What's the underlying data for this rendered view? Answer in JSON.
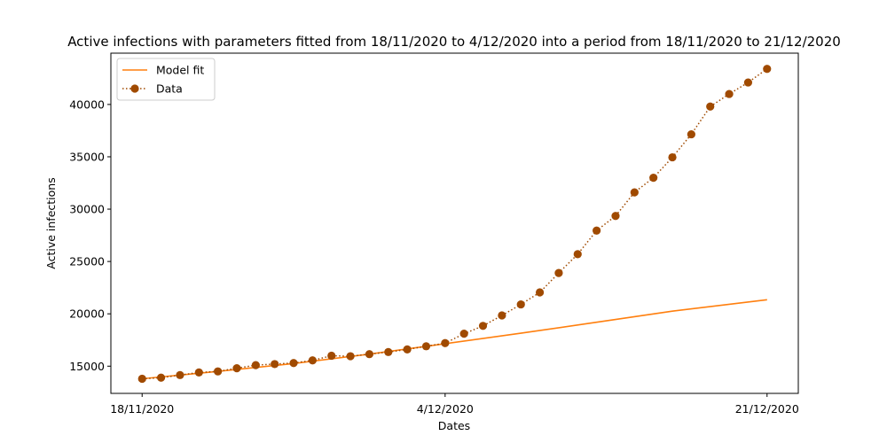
{
  "chart_data": {
    "type": "line",
    "title": "Active infections with parameters fitted from 18/11/2020 to 4/12/2020 into a period from 18/11/2020 to 21/12/2020",
    "xlabel": "Dates",
    "ylabel": "Active infections",
    "x_ticks": [
      "18/11/2020",
      "4/12/2020",
      "21/12/2020"
    ],
    "x_tick_days": [
      0,
      16,
      33
    ],
    "xlim": [
      -1.65,
      34.65
    ],
    "y_ticks": [
      15000,
      20000,
      25000,
      30000,
      35000,
      40000
    ],
    "ylim": [
      12400,
      44900
    ],
    "legend_position": "upper-left",
    "grid": false,
    "series": [
      {
        "name": "Model fit",
        "style": "solid",
        "color": "#ff7f0e",
        "x": [
          0,
          4,
          8,
          12,
          16,
          20,
          24,
          28,
          33
        ],
        "values": [
          13800,
          14500,
          15250,
          16150,
          17150,
          18150,
          19200,
          20250,
          21350
        ]
      },
      {
        "name": "Data",
        "style": "dotted-markers",
        "color": "#a04a00",
        "x": [
          0,
          1,
          2,
          3,
          4,
          5,
          6,
          7,
          8,
          9,
          10,
          11,
          12,
          13,
          14,
          15,
          16,
          17,
          18,
          19,
          20,
          21,
          22,
          23,
          24,
          25,
          26,
          27,
          28,
          29,
          30,
          31,
          32,
          33
        ],
        "values": [
          13800,
          13900,
          14150,
          14400,
          14500,
          14800,
          15100,
          15200,
          15300,
          15550,
          16000,
          15950,
          16150,
          16350,
          16600,
          16900,
          17200,
          18100,
          18850,
          19850,
          20900,
          22050,
          23900,
          25700,
          27950,
          29350,
          31600,
          33000,
          34950,
          37150,
          39800,
          41000,
          42100,
          43400
        ]
      }
    ]
  }
}
